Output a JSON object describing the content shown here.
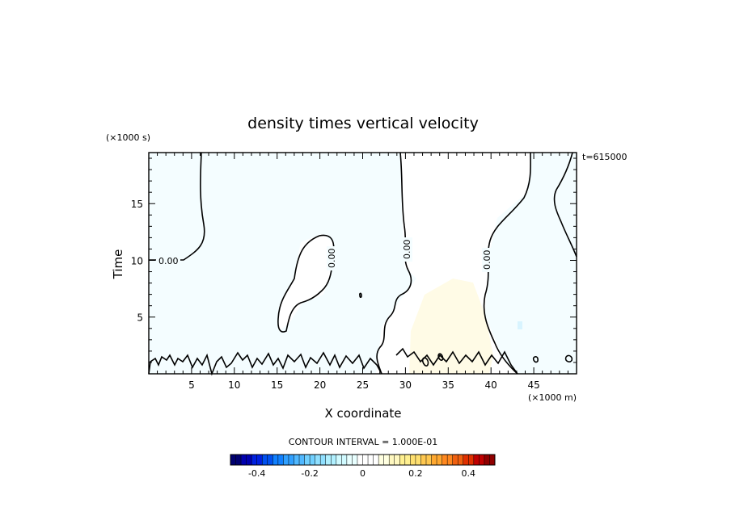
{
  "chart_data": {
    "type": "heatmap",
    "title": "density times vertical velocity",
    "xlabel": "X coordinate",
    "ylabel": "Time",
    "x_unit": "(×1000 m)",
    "y_unit": "(×1000 s)",
    "timestamp": "t=615000",
    "xlim": [
      0,
      50
    ],
    "ylim": [
      0,
      19.5
    ],
    "x_ticks": [
      5,
      10,
      15,
      20,
      25,
      30,
      35,
      40,
      45
    ],
    "y_ticks": [
      5,
      10,
      15
    ],
    "contour_interval": "CONTOUR INTERVAL = 1.000E-01",
    "contour_level_label": "0.00",
    "colorbar": {
      "range": [
        -0.5,
        0.5
      ],
      "ticks": [
        "-0.4",
        "-0.2",
        "0",
        "0.2",
        "0.4"
      ],
      "tick_values": [
        -0.4,
        -0.2,
        0,
        0.2,
        0.4
      ],
      "colors": [
        "#000070",
        "#0000b0",
        "#0020e0",
        "#0050f0",
        "#1080ff",
        "#30a0ff",
        "#50b8ff",
        "#70d0ff",
        "#90e0ff",
        "#b0f0ff",
        "#d0faff",
        "#e8ffff",
        "#ffffff",
        "#ffffff",
        "#ffffe0",
        "#fff8c0",
        "#fff090",
        "#ffe070",
        "#ffc850",
        "#ffa830",
        "#ff8820",
        "#f06010",
        "#e03000",
        "#c00000",
        "#900000"
      ]
    },
    "fields": {
      "negative_fill": "#f4fdff",
      "positive_fill": "#fffbe6",
      "near_zero_fill": "#ffffff"
    }
  }
}
